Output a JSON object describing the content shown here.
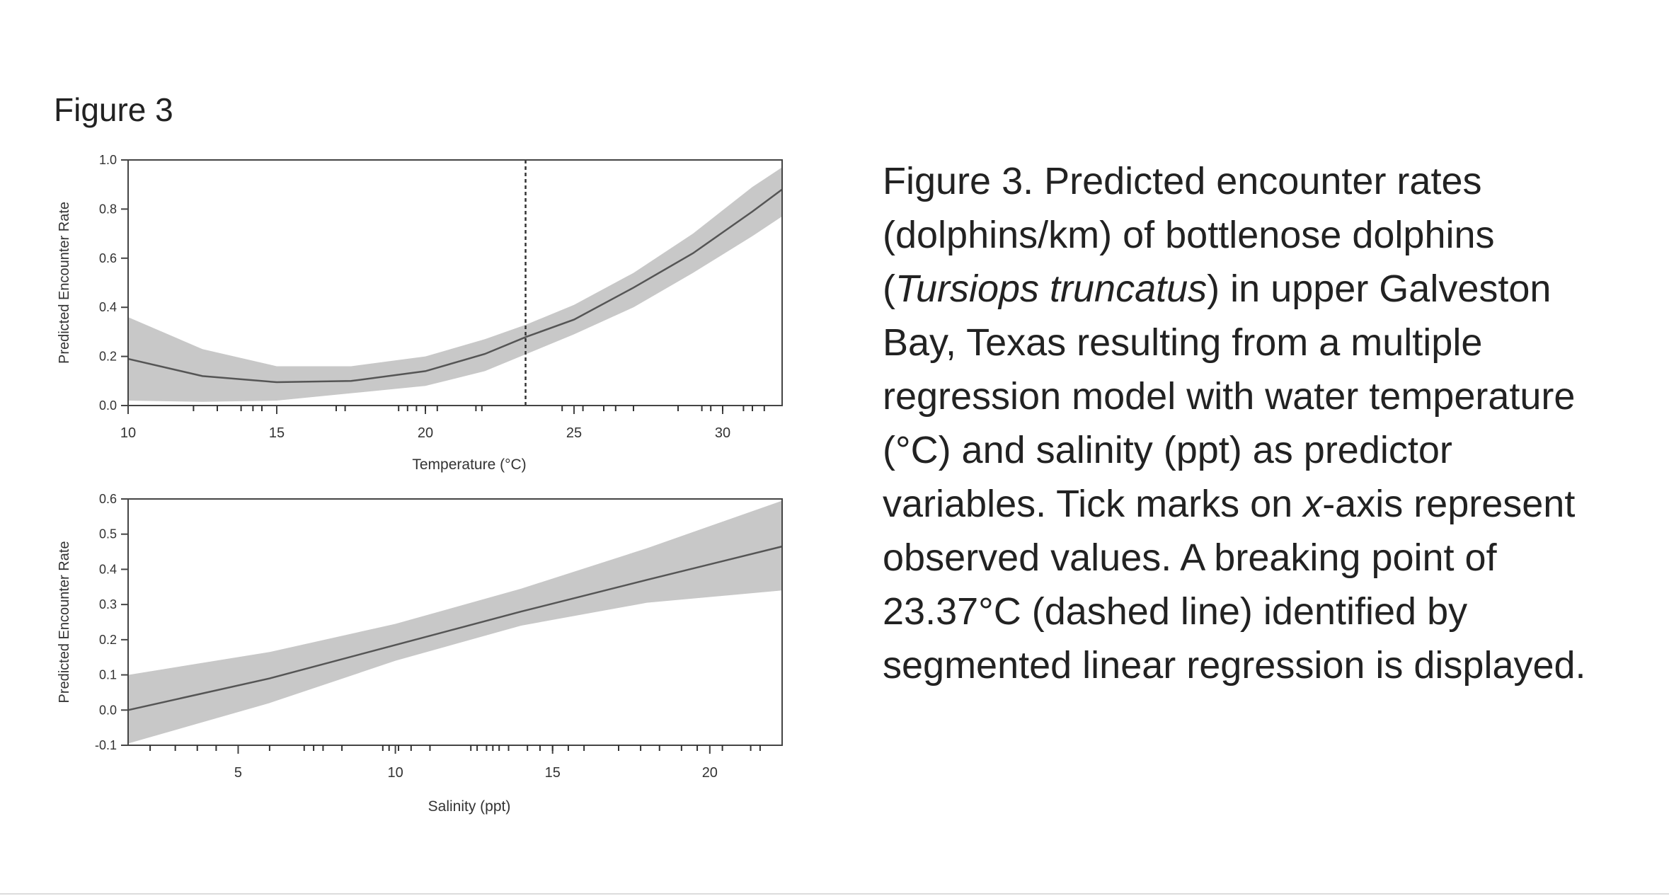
{
  "figure_label": "Figure 3",
  "caption": {
    "lead": "Figure 3.",
    "part1": " Predicted encounter rates (dolphins/km) of bottlenose dolphins (",
    "italic1": "Tursiops truncatus",
    "part2": ") in upper Galveston Bay, Texas resulting from a multiple regression model with water temperature (°C) and salinity (ppt) as predictor variables. Tick marks on ",
    "italic2": "x",
    "part3": "-axis represent observed values. A breaking point of 23.37°C (dashed line) identified by segmented linear regression is displayed."
  },
  "colors": {
    "band": "#c8c8c8",
    "line": "#555555",
    "axis": "#444444"
  },
  "chart_data": [
    {
      "type": "line",
      "xlabel": "Temperature (°C)",
      "ylabel": "Predicted Encounter Rate",
      "xlim": [
        10,
        32
      ],
      "ylim": [
        0,
        1.0
      ],
      "xticks": [
        10,
        15,
        20,
        25,
        30
      ],
      "xtick_labels": [
        "10",
        "15",
        "20",
        "25",
        "30"
      ],
      "yticks": [
        0.0,
        0.2,
        0.4,
        0.6,
        0.8,
        1.0
      ],
      "ytick_labels": [
        "0.0",
        "0.2",
        "0.4",
        "0.6",
        "0.8",
        "1.0"
      ],
      "x": [
        10,
        12.5,
        15,
        17.5,
        20,
        22,
        23.4,
        25,
        27,
        29,
        31,
        32
      ],
      "y": [
        0.19,
        0.12,
        0.095,
        0.1,
        0.14,
        0.21,
        0.28,
        0.35,
        0.48,
        0.62,
        0.79,
        0.88
      ],
      "lower": [
        0.02,
        0.015,
        0.02,
        0.05,
        0.08,
        0.14,
        0.21,
        0.29,
        0.4,
        0.54,
        0.69,
        0.77
      ],
      "upper": [
        0.36,
        0.23,
        0.16,
        0.16,
        0.2,
        0.27,
        0.33,
        0.41,
        0.54,
        0.7,
        0.89,
        0.97
      ],
      "breakpoint": 23.37,
      "observed_ticks": [
        12.2,
        13.0,
        13.8,
        14.2,
        14.5,
        17.0,
        17.3,
        19.1,
        19.4,
        19.7,
        20.0,
        20.4,
        21.7,
        21.9,
        24.6,
        25.3,
        26.0,
        26.4,
        27.0,
        28.5,
        29.3,
        29.6,
        30.0,
        30.7,
        31.0,
        31.4
      ]
    },
    {
      "type": "line",
      "xlabel": "Salinity (ppt)",
      "ylabel": "Predicted Encounter Rate",
      "xlim": [
        1.5,
        22.3
      ],
      "ylim": [
        -0.1,
        0.6
      ],
      "xticks": [
        5,
        10,
        15,
        20
      ],
      "xtick_labels": [
        "5",
        "10",
        "15",
        "20"
      ],
      "yticks": [
        -0.1,
        0.0,
        0.1,
        0.2,
        0.3,
        0.4,
        0.5,
        0.6
      ],
      "ytick_labels": [
        "-0.1",
        "0.0",
        "0.1",
        "0.2",
        "0.3",
        "0.4",
        "0.5",
        "0.6"
      ],
      "x": [
        1.5,
        6,
        10,
        14,
        18,
        22.3
      ],
      "y": [
        0.0,
        0.09,
        0.185,
        0.28,
        0.37,
        0.465
      ],
      "lower": [
        -0.095,
        0.02,
        0.14,
        0.24,
        0.305,
        0.34
      ],
      "upper": [
        0.1,
        0.165,
        0.245,
        0.345,
        0.46,
        0.595
      ],
      "observed_ticks": [
        2.2,
        3.0,
        3.7,
        4.3,
        6.0,
        7.1,
        7.4,
        7.7,
        8.3,
        9.6,
        9.8,
        10.1,
        10.5,
        11.1,
        12.4,
        12.6,
        12.9,
        13.1,
        13.3,
        13.6,
        14.2,
        14.6,
        15.0,
        15.5,
        16.0,
        17.1,
        17.8,
        18.4,
        19.1,
        19.6,
        20.4,
        21.3,
        21.6
      ]
    }
  ]
}
